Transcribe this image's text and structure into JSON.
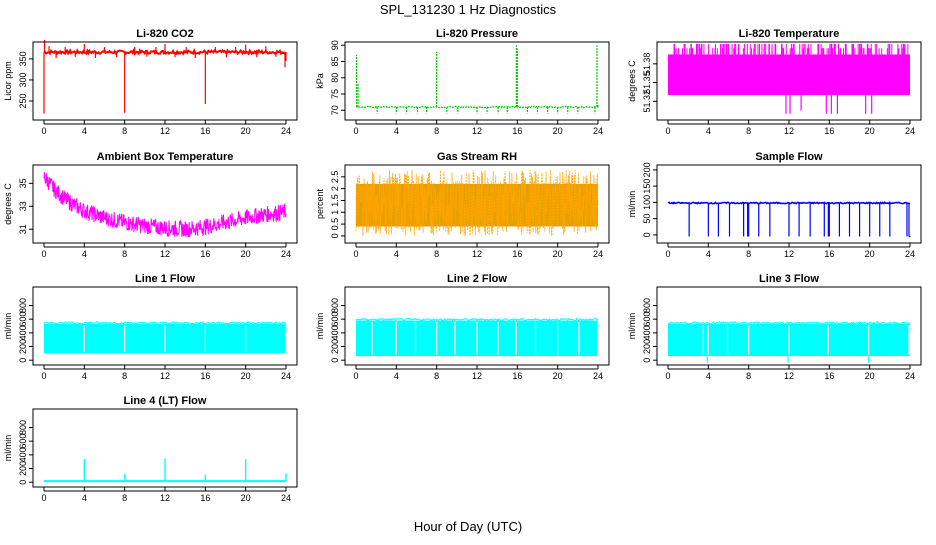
{
  "main_title": "SPL_131230  1 Hz Diagnostics",
  "x_label": "Hour of Day (UTC)",
  "chart_data": [
    {
      "id": "co2",
      "type": "line",
      "title": "Li-820 CO2",
      "ylabel": "Licor ppm",
      "color": "#ff0000",
      "xlim": [
        0,
        24
      ],
      "xticks": [
        0,
        4,
        8,
        12,
        16,
        20,
        24
      ],
      "ylim": [
        205,
        390
      ],
      "yticks": [
        250,
        300,
        350
      ],
      "series": [
        {
          "name": "CO2",
          "baseline": 366,
          "noise": 4,
          "spikes": [
            [
              0,
              220
            ],
            [
              0.05,
              395
            ],
            [
              8,
              222
            ],
            [
              16,
              243
            ],
            [
              23.9,
              330
            ],
            [
              24,
              345
            ],
            [
              0.5,
              380
            ],
            [
              1.2,
              352
            ],
            [
              2.1,
              378
            ],
            [
              3.1,
              355
            ],
            [
              4.0,
              385
            ],
            [
              5.1,
              352
            ],
            [
              6.0,
              378
            ],
            [
              7.2,
              354
            ],
            [
              9.0,
              378
            ],
            [
              10.2,
              355
            ],
            [
              11.1,
              378
            ],
            [
              12.0,
              385
            ],
            [
              13.0,
              354
            ],
            [
              14.1,
              378
            ],
            [
              15.0,
              352
            ],
            [
              17.0,
              378
            ],
            [
              18.1,
              354
            ],
            [
              19.0,
              378
            ],
            [
              20.0,
              384
            ],
            [
              21.1,
              354
            ],
            [
              22.0,
              380
            ],
            [
              23.0,
              355
            ]
          ]
        }
      ]
    },
    {
      "id": "pressure",
      "type": "line",
      "title": "Li-820 Pressure",
      "ylabel": "kPa",
      "color": "#00cc00",
      "xlim": [
        0,
        24
      ],
      "xticks": [
        0,
        4,
        8,
        12,
        16,
        20,
        24
      ],
      "ylim": [
        67,
        91
      ],
      "yticks": [
        70,
        75,
        80,
        85,
        90
      ],
      "series": [
        {
          "name": "Pressure",
          "baseline": 71,
          "noise": 0.2,
          "spikes": [
            [
              0.05,
              87
            ],
            [
              0.2,
              78
            ],
            [
              2.1,
              69
            ],
            [
              4.0,
              69
            ],
            [
              5.0,
              69
            ],
            [
              6.1,
              69
            ],
            [
              7.0,
              69
            ],
            [
              8.0,
              88
            ],
            [
              9.0,
              69
            ],
            [
              10.1,
              69
            ],
            [
              12.0,
              69
            ],
            [
              13.0,
              69
            ],
            [
              14.1,
              69
            ],
            [
              15.0,
              69
            ],
            [
              15.9,
              90
            ],
            [
              16.0,
              89
            ],
            [
              17.0,
              69
            ],
            [
              18.0,
              69
            ],
            [
              19.0,
              69
            ],
            [
              20.0,
              69
            ],
            [
              21.0,
              69
            ],
            [
              22.0,
              69
            ],
            [
              23.7,
              69
            ],
            [
              23.9,
              90
            ],
            [
              24,
              72
            ]
          ]
        }
      ]
    },
    {
      "id": "temperature",
      "type": "line",
      "title": "Li-820 Temperature",
      "ylabel": "degrees C",
      "color": "#ff00ff",
      "xlim": [
        0,
        24
      ],
      "xticks": [
        0,
        4,
        8,
        12,
        16,
        20,
        24
      ],
      "ylim": [
        51.29,
        51.415
      ],
      "yticks": [
        51.32,
        51.35,
        51.38
      ],
      "series": [
        {
          "name": "Temp",
          "base_low": 51.33,
          "base_high": 51.395,
          "spikes_down": [
            [
              1.9,
              51.33
            ],
            [
              3.0,
              51.33
            ],
            [
              11.7,
              51.3
            ],
            [
              12.1,
              51.3
            ],
            [
              13.2,
              51.305
            ],
            [
              15.7,
              51.3
            ],
            [
              16.2,
              51.3
            ],
            [
              16.8,
              51.3
            ],
            [
              19.6,
              51.3
            ],
            [
              20.2,
              51.3
            ]
          ]
        }
      ]
    },
    {
      "id": "ambient",
      "type": "line",
      "title": "Ambient Box Temperature",
      "ylabel": "degrees C",
      "color": "#ff00ff",
      "xlim": [
        0,
        24
      ],
      "xticks": [
        0,
        4,
        8,
        12,
        16,
        20,
        24
      ],
      "ylim": [
        29.8,
        36.6
      ],
      "yticks": [
        31,
        33,
        35
      ],
      "series": [
        {
          "name": "Ambient",
          "curve": [
            [
              0,
              35.6
            ],
            [
              1,
              34.5
            ],
            [
              2,
              33.7
            ],
            [
              3,
              33.1
            ],
            [
              4,
              32.6
            ],
            [
              6,
              32.0
            ],
            [
              8,
              31.6
            ],
            [
              10,
              31.3
            ],
            [
              12,
              31.1
            ],
            [
              14,
              31.0
            ],
            [
              16,
              31.2
            ],
            [
              18,
              31.6
            ],
            [
              20,
              32.0
            ],
            [
              22,
              32.3
            ],
            [
              24,
              32.5
            ]
          ],
          "band": 0.9
        }
      ]
    },
    {
      "id": "rh",
      "type": "line",
      "title": "Gas Stream RH",
      "ylabel": "percent",
      "color": "#ffa500",
      "xlim": [
        0,
        24
      ],
      "xticks": [
        0,
        4,
        8,
        12,
        16,
        20,
        24
      ],
      "ylim": [
        -0.3,
        3.0
      ],
      "yticks": [
        0.0,
        0.5,
        1.0,
        1.5,
        2.0,
        2.5
      ],
      "series": [
        {
          "name": "RH",
          "low": 0.0,
          "high": 2.8,
          "center": 1.3
        }
      ]
    },
    {
      "id": "sample",
      "type": "line",
      "title": "Sample Flow",
      "ylabel": "ml/min",
      "color": "#0000ff",
      "xlim": [
        0,
        24
      ],
      "xticks": [
        0,
        4,
        8,
        12,
        16,
        20,
        24
      ],
      "ylim": [
        -25,
        215
      ],
      "yticks": [
        0,
        50,
        100,
        150,
        200
      ],
      "series": [
        {
          "name": "Sample",
          "baseline": 98,
          "noise": 2,
          "dips": [
            2.1,
            4.0,
            5.0,
            6.1,
            7.5,
            7.9,
            8.0,
            9.0,
            10.1,
            12.0,
            13.0,
            14.1,
            15.5,
            15.9,
            16.0,
            17.0,
            18.0,
            19.0,
            20.0,
            21.0,
            22.0,
            23.7,
            23.9
          ]
        }
      ]
    },
    {
      "id": "line1",
      "type": "line",
      "title": "Line 1 Flow",
      "ylabel": "ml/min",
      "color": "#00ffff",
      "xlim": [
        0,
        24
      ],
      "xticks": [
        0,
        4,
        8,
        12,
        16,
        20,
        24
      ],
      "ylim": [
        -70,
        1070
      ],
      "yticks": [
        0,
        200,
        400,
        600,
        800
      ],
      "series": [
        {
          "name": "Line1",
          "low": 100,
          "high": 530,
          "gaps": [
            4,
            8,
            12,
            16,
            20,
            24
          ]
        }
      ]
    },
    {
      "id": "line2",
      "type": "line",
      "title": "Line 2 Flow",
      "ylabel": "ml/min",
      "color": "#00ffff",
      "xlim": [
        0,
        24
      ],
      "xticks": [
        0,
        4,
        8,
        12,
        16,
        20,
        24
      ],
      "ylim": [
        -70,
        1070
      ],
      "yticks": [
        0,
        200,
        400,
        600,
        800
      ],
      "series": [
        {
          "name": "Line2",
          "low": 60,
          "high": 580,
          "gaps": [
            1.6,
            4.0,
            5.9,
            8.0,
            9.8,
            12.0,
            14.1,
            15.9,
            17.8,
            20.0,
            22.1,
            24
          ]
        }
      ]
    },
    {
      "id": "line3",
      "type": "line",
      "title": "Line 3 Flow",
      "ylabel": "ml/min",
      "color": "#00ffff",
      "xlim": [
        0,
        24
      ],
      "xticks": [
        0,
        4,
        8,
        12,
        16,
        20,
        24
      ],
      "ylim": [
        -70,
        1070
      ],
      "yticks": [
        0,
        200,
        400,
        600,
        800
      ],
      "series": [
        {
          "name": "Line3",
          "low": 60,
          "high": 530,
          "gaps": [
            3.5,
            4.0,
            5.9,
            8.0,
            12.0,
            15.9,
            19.9,
            23.9
          ],
          "drops": [
            4.0,
            12.0,
            20.0
          ]
        }
      ]
    },
    {
      "id": "line4",
      "type": "line",
      "title": "Line 4 (LT) Flow",
      "ylabel": "ml/min",
      "color": "#00ffff",
      "xlim": [
        0,
        24
      ],
      "xticks": [
        0,
        4,
        8,
        12,
        16,
        20,
        24
      ],
      "ylim": [
        -70,
        1070
      ],
      "yticks": [
        0,
        200,
        400,
        600,
        800
      ],
      "series": [
        {
          "name": "Line4",
          "baseline": 15,
          "peaks": [
            [
              4.0,
              340
            ],
            [
              8.0,
              120
            ],
            [
              12.0,
              350
            ],
            [
              16.0,
              110
            ],
            [
              20.0,
              340
            ],
            [
              24.0,
              130
            ]
          ]
        }
      ]
    }
  ]
}
